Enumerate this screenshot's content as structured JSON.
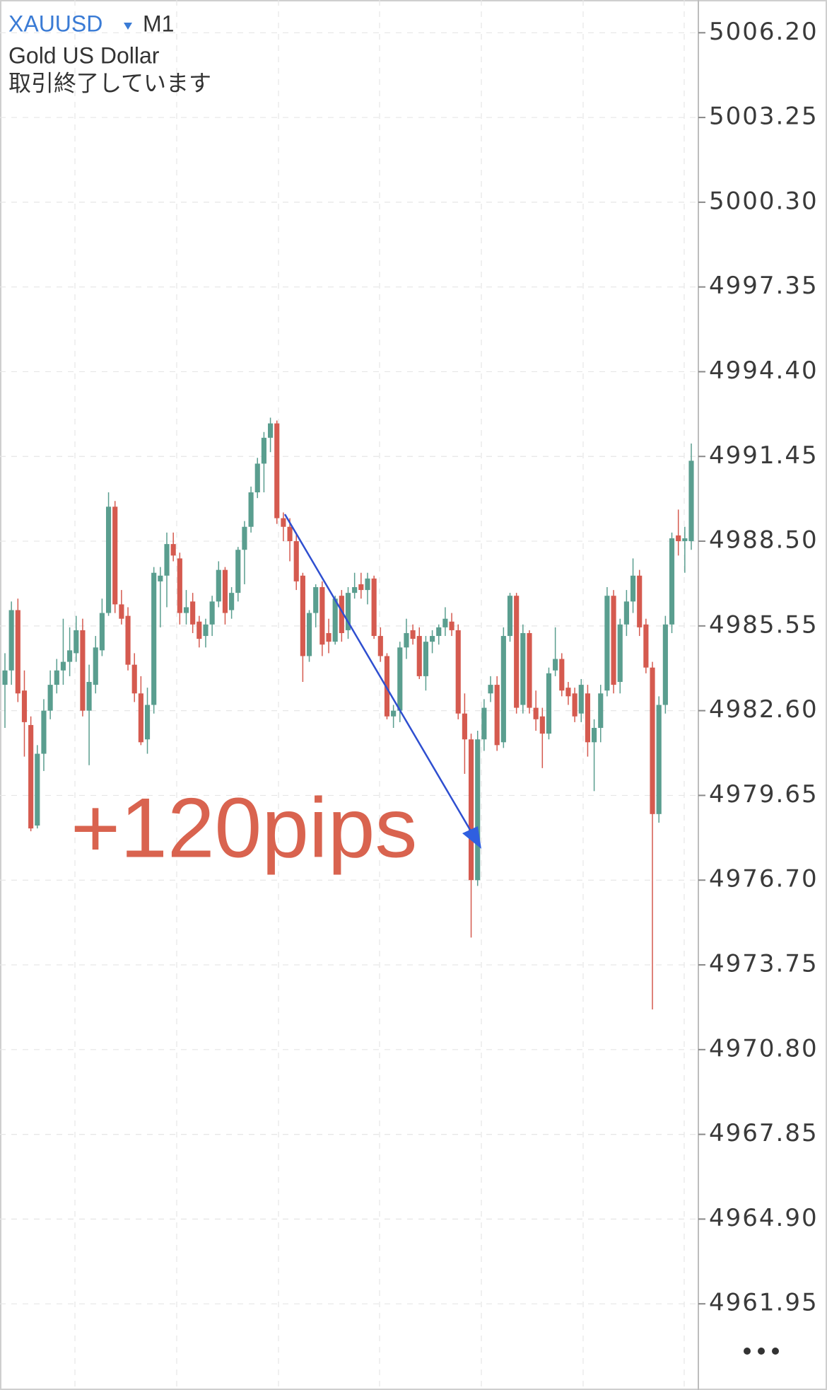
{
  "chart_data": {
    "type": "candlestick",
    "title": "XAUUSD",
    "timeframe": "M1",
    "subtitle": "Gold US Dollar",
    "status": "取引終了しています",
    "annotation": "+120pips",
    "up_color": "#5a9e8f",
    "down_color": "#d55a4f",
    "grid": true,
    "ylim": [
      4958.95,
      5007.34
    ],
    "yticks": [
      {
        "value": 5006.2,
        "label": "5006.20"
      },
      5003.25,
      {
        "value": 5000.3,
        "label": "5000.30"
      },
      4997.35,
      {
        "value": 4994.4,
        "label": "4994.40"
      },
      4991.45,
      {
        "value": 4988.5,
        "label": "4988.50"
      },
      4985.55,
      {
        "value": 4982.6,
        "label": "4982.60"
      },
      4979.65,
      {
        "value": 4976.7,
        "label": "4976.70"
      },
      4973.75,
      {
        "value": 4970.8,
        "label": "4970.80"
      },
      4967.85,
      {
        "value": 4964.9,
        "label": "4964.90"
      },
      4961.95
    ],
    "ohlc": [
      [
        4983.5,
        4984.6,
        4982.0,
        4984.0
      ],
      [
        4984.0,
        4986.4,
        4983.5,
        4986.1
      ],
      [
        4986.1,
        4986.5,
        4982.9,
        4983.2
      ],
      [
        4983.3,
        4984.0,
        4981.0,
        4982.2
      ],
      [
        4982.1,
        4982.4,
        4978.4,
        4978.5
      ],
      [
        4978.6,
        4981.4,
        4978.5,
        4981.1
      ],
      [
        4981.1,
        4983.0,
        4980.5,
        4982.6
      ],
      [
        4982.6,
        4984.0,
        4982.3,
        4983.5
      ],
      [
        4983.5,
        4984.4,
        4983.2,
        4984.0
      ],
      [
        4984.0,
        4985.8,
        4983.5,
        4984.3
      ],
      [
        4984.3,
        4985.5,
        4983.8,
        4984.7
      ],
      [
        4984.6,
        4985.9,
        4984.3,
        4985.4
      ],
      [
        4985.4,
        4985.8,
        4982.4,
        4982.6
      ],
      [
        4982.6,
        4984.2,
        4980.7,
        4983.6
      ],
      [
        4983.5,
        4985.2,
        4983.2,
        4984.8
      ],
      [
        4984.7,
        4986.5,
        4984.5,
        4986.0
      ],
      [
        4986.0,
        4990.2,
        4985.9,
        4989.7
      ],
      [
        4989.7,
        4989.9,
        4986.0,
        4986.3
      ],
      [
        4986.3,
        4986.8,
        4985.6,
        4985.8
      ],
      [
        4985.9,
        4986.2,
        4984.0,
        4984.2
      ],
      [
        4984.2,
        4984.6,
        4982.9,
        4983.2
      ],
      [
        4983.2,
        4983.8,
        4981.4,
        4981.5
      ],
      [
        4981.6,
        4983.4,
        4981.1,
        4982.8
      ],
      [
        4982.8,
        4987.6,
        4982.5,
        4987.4
      ],
      [
        4987.1,
        4987.6,
        4985.5,
        4987.3
      ],
      [
        4987.3,
        4988.8,
        4986.2,
        4988.4
      ],
      [
        4988.4,
        4988.8,
        4987.8,
        4988.0
      ],
      [
        4987.9,
        4988.1,
        4985.6,
        4986.0
      ],
      [
        4986.0,
        4986.8,
        4985.6,
        4986.2
      ],
      [
        4986.4,
        4986.7,
        4985.3,
        4985.6
      ],
      [
        4985.7,
        4985.9,
        4984.8,
        4985.1
      ],
      [
        4985.2,
        4985.8,
        4984.8,
        4985.6
      ],
      [
        4985.6,
        4986.6,
        4985.2,
        4986.4
      ],
      [
        4986.4,
        4987.8,
        4986.2,
        4987.5
      ],
      [
        4987.5,
        4987.6,
        4985.6,
        4986.0
      ],
      [
        4986.1,
        4986.9,
        4985.8,
        4986.7
      ],
      [
        4986.7,
        4988.3,
        4986.4,
        4988.2
      ],
      [
        4988.2,
        4989.2,
        4987.0,
        4989.0
      ],
      [
        4989.0,
        4990.4,
        4988.8,
        4990.2
      ],
      [
        4990.2,
        4991.4,
        4990.0,
        4991.2
      ],
      [
        4991.2,
        4992.3,
        4990.2,
        4992.1
      ],
      [
        4992.1,
        4992.8,
        4991.6,
        4992.6
      ],
      [
        4992.6,
        4992.7,
        4989.1,
        4989.3
      ],
      [
        4989.3,
        4989.5,
        4988.5,
        4989.0
      ],
      [
        4989.0,
        4989.3,
        4987.8,
        4988.5
      ],
      [
        4988.5,
        4988.8,
        4986.8,
        4987.1
      ],
      [
        4987.3,
        4987.4,
        4983.6,
        4984.5
      ],
      [
        4984.5,
        4986.1,
        4984.3,
        4986.0
      ],
      [
        4986.0,
        4987.0,
        4985.5,
        4986.9
      ],
      [
        4986.9,
        4987.1,
        4984.5,
        4984.9
      ],
      [
        4985.3,
        4985.8,
        4984.6,
        4985.0
      ],
      [
        4985.0,
        4986.6,
        4984.9,
        4986.5
      ],
      [
        4986.6,
        4986.8,
        4985.0,
        4985.3
      ],
      [
        4985.4,
        4986.9,
        4985.1,
        4986.7
      ],
      [
        4986.7,
        4987.4,
        4986.5,
        4986.9
      ],
      [
        4987.0,
        4987.4,
        4986.5,
        4986.8
      ],
      [
        4986.8,
        4987.4,
        4986.3,
        4987.2
      ],
      [
        4987.2,
        4987.3,
        4985.1,
        4985.2
      ],
      [
        4985.2,
        4985.5,
        4984.3,
        4984.5
      ],
      [
        4984.5,
        4984.6,
        4982.3,
        4982.4
      ],
      [
        4982.4,
        4982.8,
        4982.0,
        4982.6
      ],
      [
        4982.6,
        4985.0,
        4982.2,
        4984.8
      ],
      [
        4984.8,
        4985.8,
        4984.4,
        4985.3
      ],
      [
        4985.4,
        4985.6,
        4984.9,
        4985.1
      ],
      [
        4985.2,
        4985.5,
        4983.7,
        4983.8
      ],
      [
        4983.8,
        4985.2,
        4983.3,
        4985.0
      ],
      [
        4985.0,
        4985.4,
        4984.6,
        4985.2
      ],
      [
        4985.2,
        4985.6,
        4984.9,
        4985.5
      ],
      [
        4985.5,
        4986.2,
        4985.2,
        4985.8
      ],
      [
        4985.7,
        4986.0,
        4985.2,
        4985.4
      ],
      [
        4985.4,
        4985.6,
        4982.3,
        4982.5
      ],
      [
        4982.5,
        4983.2,
        4980.4,
        4981.6
      ],
      [
        4981.6,
        4981.8,
        4974.7,
        4976.7
      ],
      [
        4976.7,
        4981.9,
        4976.5,
        4981.6
      ],
      [
        4981.6,
        4983.0,
        4981.2,
        4982.7
      ],
      [
        4983.2,
        4983.8,
        4982.9,
        4983.5
      ],
      [
        4983.5,
        4983.8,
        4981.2,
        4981.4
      ],
      [
        4981.5,
        4985.5,
        4981.3,
        4985.2
      ],
      [
        4985.2,
        4986.7,
        4985.0,
        4986.6
      ],
      [
        4986.6,
        4986.7,
        4982.5,
        4982.7
      ],
      [
        4982.8,
        4985.6,
        4982.5,
        4985.3
      ],
      [
        4985.3,
        4985.4,
        4982.5,
        4982.7
      ],
      [
        4982.7,
        4983.3,
        4981.9,
        4982.3
      ],
      [
        4982.4,
        4982.7,
        4980.6,
        4981.8
      ],
      [
        4981.8,
        4984.1,
        4981.6,
        4983.9
      ],
      [
        4984.0,
        4985.5,
        4983.8,
        4984.4
      ],
      [
        4984.4,
        4984.6,
        4983.1,
        4983.3
      ],
      [
        4983.4,
        4983.6,
        4982.8,
        4983.1
      ],
      [
        4983.2,
        4983.4,
        4982.2,
        4982.4
      ],
      [
        4982.5,
        4983.7,
        4982.2,
        4983.5
      ],
      [
        4983.2,
        4983.5,
        4981.0,
        4981.5
      ],
      [
        4981.5,
        4982.3,
        4979.8,
        4982.0
      ],
      [
        4982.0,
        4983.5,
        4981.5,
        4983.2
      ],
      [
        4983.3,
        4986.9,
        4983.1,
        4986.6
      ],
      [
        4986.6,
        4986.8,
        4983.2,
        4983.5
      ],
      [
        4983.6,
        4985.8,
        4983.2,
        4985.6
      ],
      [
        4985.6,
        4986.8,
        4985.2,
        4986.4
      ],
      [
        4986.4,
        4987.9,
        4986.0,
        4987.3
      ],
      [
        4987.3,
        4987.5,
        4985.2,
        4985.5
      ],
      [
        4985.6,
        4985.8,
        4983.9,
        4984.1
      ],
      [
        4984.1,
        4984.3,
        4972.2,
        4979.0
      ],
      [
        4979.0,
        4983.1,
        4978.7,
        4982.8
      ],
      [
        4982.8,
        4985.9,
        4982.5,
        4985.6
      ],
      [
        4985.6,
        4988.8,
        4985.3,
        4988.6
      ],
      [
        4988.7,
        4989.6,
        4988.0,
        4988.5
      ],
      [
        4988.5,
        4989.0,
        4987.4,
        4988.6
      ],
      [
        4988.5,
        4991.9,
        4988.2,
        4991.3
      ]
    ]
  }
}
